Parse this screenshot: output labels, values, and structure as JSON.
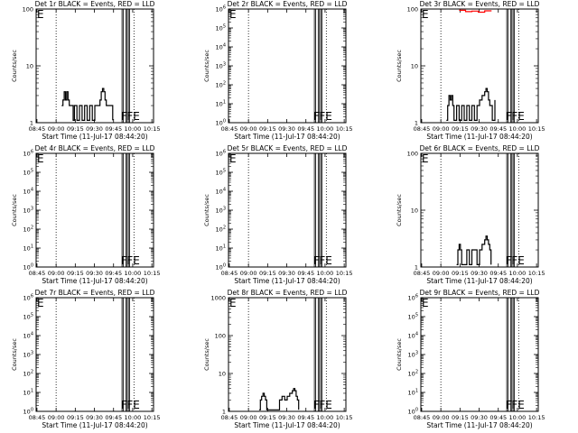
{
  "chart_data": [
    {
      "type": "line",
      "title": "Det 1r BLACK = Events, RED = LLD",
      "xlabel": "Start Time (11-Jul-17 08:44:20)",
      "ylabel": "Counts/sec",
      "yscale": "log",
      "ylim": [
        1,
        100
      ],
      "yticks": [
        "1",
        "10",
        "100"
      ],
      "xtick_labels": [
        "08:45",
        "09:00",
        "09:15",
        "09:30",
        "09:45",
        "10:00",
        "10:15"
      ],
      "flag_labels": [
        "E",
        "F",
        "FE"
      ],
      "series": [
        {
          "color": "#000000",
          "values": [
            [
              20,
              2
            ],
            [
              21,
              2.5
            ],
            [
              22,
              3.5
            ],
            [
              23,
              2.5
            ],
            [
              24,
              3.5
            ],
            [
              25,
              2.5
            ],
            [
              26,
              2
            ],
            [
              28,
              2
            ],
            [
              29,
              1.1
            ],
            [
              30,
              2
            ],
            [
              32,
              1.1
            ],
            [
              34,
              2
            ],
            [
              36,
              1.1
            ],
            [
              38,
              2
            ],
            [
              40,
              1.1
            ],
            [
              42,
              2
            ],
            [
              44,
              1.1
            ],
            [
              46,
              2
            ],
            [
              48,
              2
            ],
            [
              50,
              2.5
            ],
            [
              51,
              3.5
            ],
            [
              52,
              4
            ],
            [
              53,
              3.5
            ],
            [
              54,
              2.5
            ],
            [
              55,
              2
            ],
            [
              56,
              2
            ],
            [
              60,
              1.1
            ]
          ]
        }
      ]
    },
    {
      "type": "line",
      "title": "Det 2r BLACK = Events, RED = LLD",
      "xlabel": "Start Time (11-Jul-17 08:44:20)",
      "ylabel": "Counts/sec",
      "yscale": "log",
      "ylim": [
        1,
        1000000
      ],
      "yticks": [
        "10^0",
        "10^1",
        "10^2",
        "10^3",
        "10^4",
        "10^5",
        "10^6"
      ],
      "xtick_labels": [
        "08:45",
        "09:00",
        "09:15",
        "09:30",
        "09:45",
        "10:00",
        "10:15"
      ],
      "flag_labels": [
        "E",
        "F",
        "FE"
      ],
      "series": []
    },
    {
      "type": "line",
      "title": "Det 3r BLACK = Events, RED = LLD",
      "xlabel": "Start Time (11-Jul-17 08:44:20)",
      "ylabel": "Counts/sec",
      "yscale": "log",
      "ylim": [
        1,
        100
      ],
      "yticks": [
        "1",
        "10",
        "100"
      ],
      "xtick_labels": [
        "08:45",
        "09:00",
        "09:15",
        "09:30",
        "09:45",
        "10:00",
        "10:15"
      ],
      "flag_labels": [
        "E",
        "F",
        "FE"
      ],
      "series": [
        {
          "color": "#000000",
          "values": [
            [
              20,
              1.1
            ],
            [
              21,
              2
            ],
            [
              22,
              3
            ],
            [
              23,
              2.5
            ],
            [
              24,
              3
            ],
            [
              25,
              2
            ],
            [
              26,
              1.1
            ],
            [
              28,
              2
            ],
            [
              30,
              1.1
            ],
            [
              32,
              2
            ],
            [
              34,
              1.1
            ],
            [
              36,
              2
            ],
            [
              38,
              1.1
            ],
            [
              40,
              2
            ],
            [
              42,
              1.1
            ],
            [
              44,
              2
            ],
            [
              46,
              2.5
            ],
            [
              48,
              3
            ],
            [
              50,
              3.5
            ],
            [
              51,
              4
            ],
            [
              52,
              3.5
            ],
            [
              53,
              2.5
            ],
            [
              54,
              2
            ],
            [
              56,
              1.1
            ],
            [
              58,
              2.5
            ]
          ]
        },
        {
          "color": "#ff0000",
          "values": [
            [
              30,
              95
            ],
            [
              35,
              90
            ],
            [
              40,
              92
            ],
            [
              45,
              88
            ],
            [
              50,
              93
            ],
            [
              55,
              95
            ]
          ]
        }
      ]
    },
    {
      "type": "line",
      "title": "Det 4r BLACK = Events, RED = LLD",
      "xlabel": "Start Time (11-Jul-17 08:44:20)",
      "ylabel": "Counts/sec",
      "yscale": "log",
      "ylim": [
        1,
        1000000
      ],
      "yticks": [
        "10^0",
        "10^1",
        "10^2",
        "10^3",
        "10^4",
        "10^5",
        "10^6"
      ],
      "xtick_labels": [
        "08:45",
        "09:00",
        "09:15",
        "09:30",
        "09:45",
        "10:00",
        "10:15"
      ],
      "flag_labels": [
        "E",
        "F",
        "FE"
      ],
      "series": []
    },
    {
      "type": "line",
      "title": "Det 5r BLACK = Events, RED = LLD",
      "xlabel": "Start Time (11-Jul-17 08:44:20)",
      "ylabel": "Counts/sec",
      "yscale": "log",
      "ylim": [
        1,
        1000000
      ],
      "yticks": [
        "10^0",
        "10^1",
        "10^2",
        "10^3",
        "10^4",
        "10^5",
        "10^6"
      ],
      "xtick_labels": [
        "08:45",
        "09:00",
        "09:15",
        "09:30",
        "09:45",
        "10:00",
        "10:15"
      ],
      "flag_labels": [
        "E",
        "F",
        "FE"
      ],
      "series": []
    },
    {
      "type": "line",
      "title": "Det 6r BLACK = Events, RED = LLD",
      "xlabel": "Start Time (11-Jul-17 08:44:20)",
      "ylabel": "Counts/sec",
      "yscale": "log",
      "ylim": [
        1,
        100
      ],
      "yticks": [
        "1",
        "10",
        "100"
      ],
      "xtick_labels": [
        "08:45",
        "09:00",
        "09:15",
        "09:30",
        "09:45",
        "10:00",
        "10:15"
      ],
      "flag_labels": [
        "E",
        "F",
        "FE"
      ],
      "series": [
        {
          "color": "#000000",
          "values": [
            [
              28,
              1.1
            ],
            [
              29,
              2
            ],
            [
              30,
              2.5
            ],
            [
              31,
              2
            ],
            [
              32,
              1.1
            ],
            [
              36,
              2
            ],
            [
              38,
              1.1
            ],
            [
              40,
              2
            ],
            [
              44,
              1.1
            ],
            [
              46,
              2
            ],
            [
              48,
              2.5
            ],
            [
              50,
              3
            ],
            [
              51,
              3.5
            ],
            [
              52,
              3
            ],
            [
              53,
              2.5
            ],
            [
              54,
              2
            ],
            [
              55,
              1.1
            ]
          ]
        }
      ]
    },
    {
      "type": "line",
      "title": "Det 7r BLACK = Events, RED = LLD",
      "xlabel": "Start Time (11-Jul-17 08:44:20)",
      "ylabel": "Counts/sec",
      "yscale": "log",
      "ylim": [
        1,
        1000000
      ],
      "yticks": [
        "10^0",
        "10^1",
        "10^2",
        "10^3",
        "10^4",
        "10^5",
        "10^6"
      ],
      "xtick_labels": [
        "08:45",
        "09:00",
        "09:15",
        "09:30",
        "09:45",
        "10:00",
        "10:15"
      ],
      "flag_labels": [
        "E",
        "F",
        "FE"
      ],
      "series": []
    },
    {
      "type": "line",
      "title": "Det 8r BLACK = Events, RED = LLD",
      "xlabel": "Start Time (11-Jul-17 08:44:20)",
      "ylabel": "Counts/sec",
      "yscale": "log",
      "ylim": [
        1,
        1000
      ],
      "yticks": [
        "1",
        "10",
        "100",
        "1000"
      ],
      "xtick_labels": [
        "08:45",
        "09:00",
        "09:15",
        "09:30",
        "09:45",
        "10:00",
        "10:15"
      ],
      "flag_labels": [
        "E",
        "F",
        "FE"
      ],
      "series": [
        {
          "color": "#000000",
          "values": [
            [
              24,
              1.1
            ],
            [
              25,
              2
            ],
            [
              26,
              2.5
            ],
            [
              27,
              3
            ],
            [
              28,
              2.5
            ],
            [
              29,
              2
            ],
            [
              30,
              1.1
            ],
            [
              38,
              1.1
            ],
            [
              40,
              2
            ],
            [
              42,
              2.5
            ],
            [
              44,
              2
            ],
            [
              46,
              2.5
            ],
            [
              48,
              3
            ],
            [
              50,
              3.5
            ],
            [
              51,
              4
            ],
            [
              52,
              3.5
            ],
            [
              53,
              2.5
            ],
            [
              54,
              2
            ],
            [
              55,
              1.1
            ]
          ]
        }
      ]
    },
    {
      "type": "line",
      "title": "Det 9r BLACK = Events, RED = LLD",
      "xlabel": "Start Time (11-Jul-17 08:44:20)",
      "ylabel": "Counts/sec",
      "yscale": "log",
      "ylim": [
        1,
        1000000
      ],
      "yticks": [
        "10^0",
        "10^1",
        "10^2",
        "10^3",
        "10^4",
        "10^5",
        "10^6"
      ],
      "xtick_labels": [
        "08:45",
        "09:00",
        "09:15",
        "09:30",
        "09:45",
        "10:00",
        "10:15"
      ],
      "flag_labels": [
        "E",
        "F",
        "FE"
      ],
      "series": []
    }
  ]
}
